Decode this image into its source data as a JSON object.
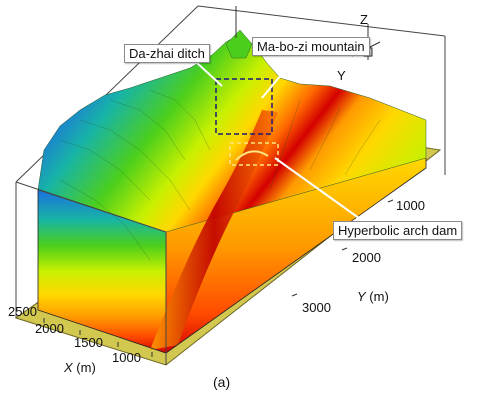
{
  "figure": {
    "panel_label": "(a)",
    "callouts": {
      "ditch": "Da-zhai ditch",
      "mountain": "Ma-bo-zi mountain",
      "dam": "Hyperbolic arch dam"
    },
    "axes": {
      "x": {
        "name": "X",
        "unit": "(m)",
        "ticks": [
          "2500",
          "2000",
          "1500",
          "1000"
        ]
      },
      "y": {
        "name": "Y",
        "unit": "(m)",
        "ticks": [
          "1000",
          "2000",
          "3000"
        ]
      },
      "orientation": {
        "z": "Z",
        "y": "Y"
      }
    },
    "colormap": [
      "#d40000",
      "#ff4a00",
      "#ff9a00",
      "#ffd800",
      "#c8f000",
      "#4ccf1c",
      "#18b4a6",
      "#1c6fe0",
      "#1830b0"
    ],
    "colors": {
      "base_plate": "#d2c850",
      "frame": "#444444",
      "highlight_box": "#1a1a7a",
      "dam_box": "#ffe680"
    }
  }
}
